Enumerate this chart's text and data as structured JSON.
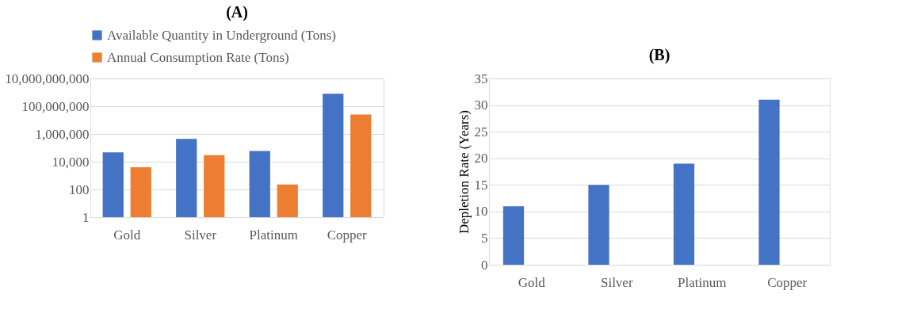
{
  "chart_data": [
    {
      "type": "bar",
      "title": "(A)",
      "categories": [
        "Gold",
        "Silver",
        "Platinum",
        "Copper"
      ],
      "log": true,
      "ylim": [
        1,
        10000000000
      ],
      "yticks": [
        1,
        100,
        {
          "value": 10000,
          "label": "10,000"
        },
        {
          "value": 1000000,
          "label": "1,000,000"
        },
        {
          "value": 100000000,
          "label": "100,000,000"
        },
        {
          "value": 10000000000,
          "label": "10,000,000,000"
        }
      ],
      "grid": "y",
      "legend": "top",
      "series": [
        {
          "name": "Available Quantity in Underground (Tons)",
          "color": "#4472c4",
          "values": [
            47000,
            440000,
            60000,
            800000000
          ]
        },
        {
          "name": "Annual Consumption Rate (Tons)",
          "color": "#ed7d31",
          "values": [
            4000,
            30000,
            230,
            25000000
          ]
        }
      ]
    },
    {
      "type": "bar",
      "title": "(B)",
      "ylabel": "Depletion Rate (Years)",
      "categories": [
        "Gold",
        "Silver",
        "Platinum",
        "Copper"
      ],
      "ylim": [
        0,
        35
      ],
      "yticks": [
        0,
        5,
        10,
        15,
        20,
        25,
        30,
        35
      ],
      "grid": "y",
      "legend": false,
      "series": [
        {
          "color": "#4472c4",
          "values": [
            11,
            15,
            19,
            31
          ]
        }
      ]
    }
  ]
}
